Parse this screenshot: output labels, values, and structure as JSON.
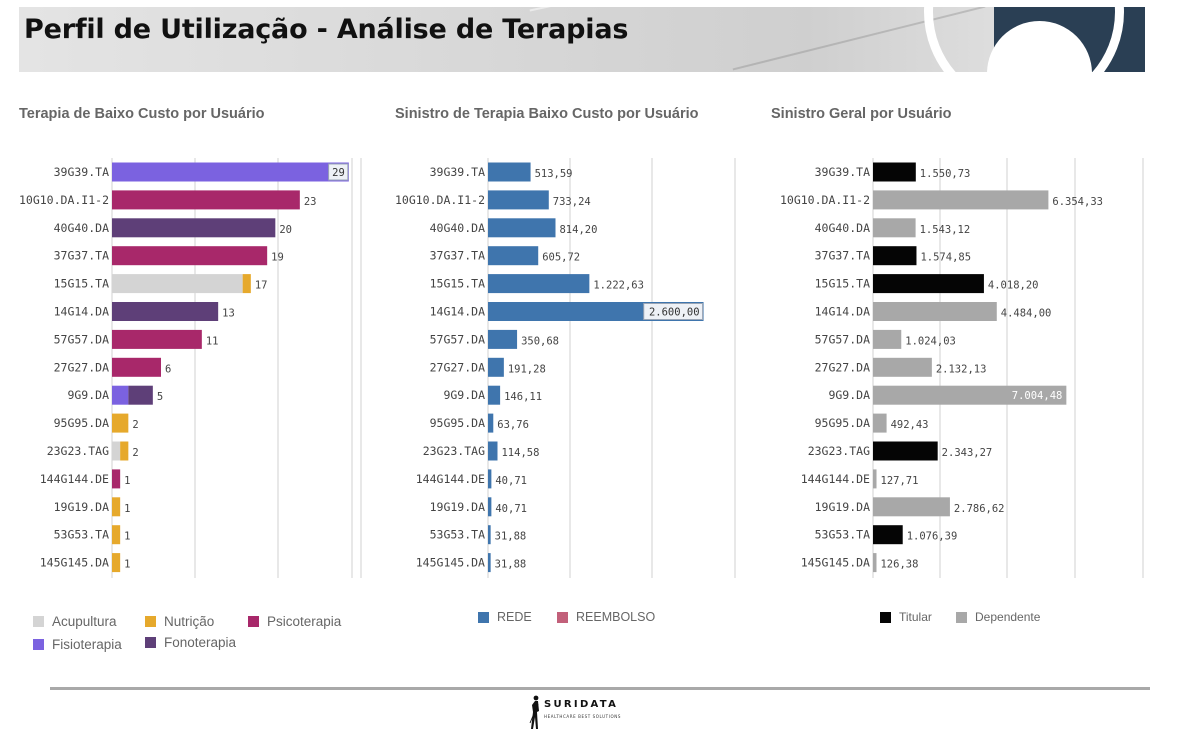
{
  "header": {
    "title": "Perfil de Utilização - Análise de Terapias"
  },
  "chart_data": [
    {
      "type": "bar",
      "orientation": "horizontal",
      "stacked": true,
      "title": "Terapia de Baixo Custo por Usuário",
      "xlim": [
        0,
        30
      ],
      "grid": true,
      "legend_position": "bottom",
      "categories": [
        "39G39.TA",
        "10G10.DA.I1-2",
        "40G40.DA",
        "37G37.TA",
        "15G15.TA",
        "14G14.DA",
        "57G57.DA",
        "27G27.DA",
        "9G9.DA",
        "95G95.DA",
        "23G23.TAG",
        "144G144.DE",
        "19G19.DA",
        "53G53.TA",
        "145G145.DA"
      ],
      "totals": [
        "29",
        "23",
        "20",
        "19",
        "17",
        "13",
        "11",
        "6",
        "5",
        "2",
        "2",
        "1",
        "1",
        "1",
        "1"
      ],
      "series": [
        {
          "name": "Acupultura",
          "color": "#d4d4d4",
          "values": [
            0,
            0,
            0,
            0,
            16,
            0,
            0,
            0,
            0,
            0,
            1,
            0,
            0,
            0,
            0
          ]
        },
        {
          "name": "Nutrição",
          "color": "#e6a92c",
          "values": [
            0,
            0,
            0,
            0,
            1,
            0,
            0,
            0,
            0,
            2,
            1,
            0,
            1,
            1,
            1
          ]
        },
        {
          "name": "Psicoterapia",
          "color": "#a8286a",
          "values": [
            0,
            23,
            0,
            19,
            0,
            0,
            11,
            6,
            0,
            0,
            0,
            1,
            0,
            0,
            0
          ]
        },
        {
          "name": "Fisioterapia",
          "color": "#7b62e0",
          "values": [
            29,
            0,
            0,
            0,
            0,
            0,
            0,
            0,
            2,
            0,
            0,
            0,
            0,
            0,
            0
          ]
        },
        {
          "name": "Fonoterapia",
          "color": "#5e3f78",
          "values": [
            0,
            0,
            20,
            0,
            0,
            13,
            0,
            0,
            3,
            0,
            0,
            0,
            0,
            0,
            0
          ]
        }
      ]
    },
    {
      "type": "bar",
      "orientation": "horizontal",
      "stacked": true,
      "title": "Sinistro de Terapia Baixo Custo por Usuário",
      "xlim": [
        0,
        3100
      ],
      "grid": true,
      "legend_position": "bottom",
      "categories": [
        "39G39.TA",
        "10G10.DA.I1-2",
        "40G40.DA",
        "37G37.TA",
        "15G15.TA",
        "14G14.DA",
        "57G57.DA",
        "27G27.DA",
        "9G9.DA",
        "95G95.DA",
        "23G23.TAG",
        "144G144.DE",
        "19G19.DA",
        "53G53.TA",
        "145G145.DA"
      ],
      "totals": [
        "513,59",
        "733,24",
        "814,20",
        "605,72",
        "1.222,63",
        "2.600,00",
        "350,68",
        "191,28",
        "146,11",
        "63,76",
        "114,58",
        "40,71",
        "40,71",
        "31,88",
        "31,88"
      ],
      "series": [
        {
          "name": "REDE",
          "color": "#3f75ad",
          "values": [
            513.59,
            733.24,
            814.2,
            605.72,
            1222.63,
            2600.0,
            350.68,
            191.28,
            146.11,
            63.76,
            114.58,
            40.71,
            40.71,
            31.88,
            31.88
          ]
        },
        {
          "name": "REEMBOLSO",
          "color": "#c2607a",
          "values": [
            0,
            0,
            0,
            0,
            0,
            0,
            0,
            0,
            0,
            0,
            0,
            0,
            0,
            0,
            0
          ]
        }
      ]
    },
    {
      "type": "bar",
      "orientation": "horizontal",
      "stacked": true,
      "title": "Sinistro Geral por Usuário",
      "xlim": [
        0,
        9600
      ],
      "grid": true,
      "legend_position": "bottom",
      "categories": [
        "39G39.TA",
        "10G10.DA.I1-2",
        "40G40.DA",
        "37G37.TA",
        "15G15.TA",
        "14G14.DA",
        "57G57.DA",
        "27G27.DA",
        "9G9.DA",
        "95G95.DA",
        "23G23.TAG",
        "144G144.DE",
        "19G19.DA",
        "53G53.TA",
        "145G145.DA"
      ],
      "totals": [
        "1.550,73",
        "6.354,33",
        "1.543,12",
        "1.574,85",
        "4.018,20",
        "4.484,00",
        "1.024,03",
        "2.132,13",
        "7.004,48",
        "492,43",
        "2.343,27",
        "127,71",
        "2.786,62",
        "1.076,39",
        "126,38"
      ],
      "series": [
        {
          "name": "Titular",
          "color": "#050505",
          "values": [
            1550.73,
            0,
            0,
            1574.85,
            4018.2,
            0,
            0,
            0,
            0,
            0,
            2343.27,
            0,
            0,
            1076.39,
            0
          ]
        },
        {
          "name": "Dependente",
          "color": "#a8a8a8",
          "values": [
            0,
            6354.33,
            1543.12,
            0,
            0,
            4484.0,
            1024.03,
            2132.13,
            7004.48,
            492.43,
            0,
            127.71,
            2786.62,
            0,
            126.38
          ]
        }
      ]
    }
  ],
  "legends": [
    {
      "items": [
        {
          "label": "Acupultura",
          "color": "#d4d4d4"
        },
        {
          "label": "Nutrição",
          "color": "#e6a92c"
        },
        {
          "label": "Psicoterapia",
          "color": "#a8286a"
        },
        {
          "label": "Fisioterapia",
          "color": "#7b62e0"
        },
        {
          "label": "Fonoterapia",
          "color": "#5e3f78"
        }
      ]
    },
    {
      "items": [
        {
          "label": "REDE",
          "color": "#3f75ad"
        },
        {
          "label": "REEMBOLSO",
          "color": "#c2607a"
        }
      ]
    },
    {
      "items": [
        {
          "label": "Titular",
          "color": "#050505"
        },
        {
          "label": "Dependente",
          "color": "#a8a8a8"
        }
      ]
    }
  ],
  "footer": {
    "brand": "SURIDATA",
    "tagline": "HEALTHCARE BEST SOLUTIONS"
  }
}
